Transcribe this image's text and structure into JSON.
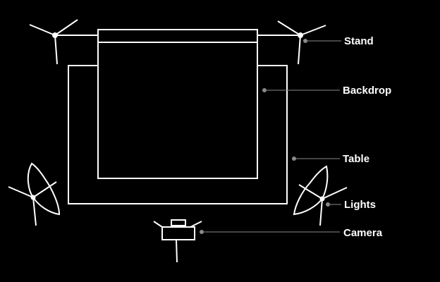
{
  "colors": {
    "background": "#000000",
    "stroke": "#ffffff",
    "leader": "#8a8a8a"
  },
  "labels": {
    "stand": "Stand",
    "backdrop": "Backdrop",
    "table": "Table",
    "lights": "Lights",
    "camera": "Camera"
  }
}
